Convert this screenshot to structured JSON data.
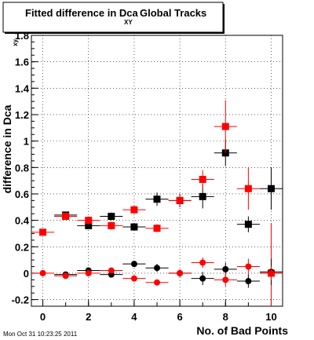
{
  "chart_data": {
    "type": "scatter",
    "title_main": "Fitted difference in Dca",
    "title_sub": "XY",
    "title_tail": "Global Tracks",
    "xlabel": "No. of Bad Points",
    "ylabel_main": "difference in Dca",
    "ylabel_sub": "xy",
    "xlim": [
      -0.5,
      10.5
    ],
    "ylim": [
      -0.25,
      1.8
    ],
    "x_ticks": [
      0,
      2,
      4,
      6,
      8,
      10
    ],
    "y_ticks": [
      -0.2,
      0,
      0.2,
      0.4,
      0.6,
      0.8,
      1,
      1.2,
      1.4,
      1.6,
      1.8
    ],
    "grid": true,
    "timestamp": "Mon Oct 31 10:23:25 2011",
    "series": [
      {
        "marker": "square",
        "color": "#000000",
        "x": [
          1,
          2,
          3,
          4,
          5,
          6,
          7,
          8,
          9,
          10
        ],
        "y": [
          0.44,
          0.36,
          0.43,
          0.35,
          0.56,
          0.55,
          0.58,
          0.91,
          0.37,
          0.64
        ],
        "yerr": [
          0.02,
          0.02,
          0.03,
          0.03,
          0.05,
          0.05,
          0.09,
          0.1,
          0.06,
          0.16
        ]
      },
      {
        "marker": "square",
        "color": "#ff0000",
        "x": [
          0,
          1,
          2,
          3,
          4,
          5,
          6,
          7,
          8,
          9,
          10
        ],
        "y": [
          0.31,
          0.43,
          0.4,
          0.36,
          0.48,
          0.34,
          0.55,
          0.71,
          1.11,
          0.64,
          0
        ],
        "yerr": [
          0.02,
          0.02,
          0.03,
          0.03,
          0.03,
          0.03,
          0.04,
          0.07,
          0.2,
          0.16,
          0.38
        ]
      },
      {
        "marker": "circle",
        "color": "#000000",
        "x": [
          1,
          2,
          3,
          4,
          5,
          6,
          7,
          8,
          9,
          10
        ],
        "y": [
          -0.01,
          0.02,
          -0.01,
          0.07,
          0.04,
          0.0,
          -0.04,
          0.03,
          -0.06,
          0.01
        ],
        "yerr": [
          0.01,
          0.02,
          0.02,
          0.02,
          0.03,
          0.02,
          0.05,
          0.05,
          0.05,
          0.1
        ]
      },
      {
        "marker": "circle",
        "color": "#ff0000",
        "x": [
          0,
          1,
          2,
          3,
          4,
          5,
          6,
          7,
          8,
          9,
          10
        ],
        "y": [
          0.0,
          -0.02,
          0.0,
          0.02,
          -0.04,
          -0.07,
          0.0,
          0.08,
          -0.05,
          0.05,
          0.0
        ],
        "yerr": [
          0.01,
          0.01,
          0.02,
          0.02,
          0.02,
          0.02,
          0.03,
          0.04,
          0.05,
          0.06,
          0.05
        ]
      }
    ]
  }
}
